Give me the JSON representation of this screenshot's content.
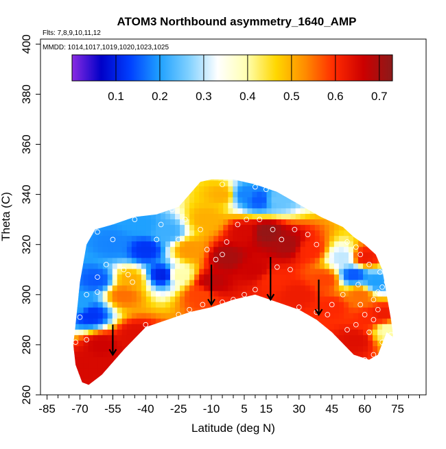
{
  "chart_data": {
    "type": "heatmap",
    "title": "ATOM3 Northbound asymmetry_1640_AMP",
    "subtitle_flights": "Flts: 7,8,9,10,11,12",
    "subtitle_dates": "MMDD: 1014,1017,1019,1020,1023,1025",
    "xlabel": "Latitude (deg N)",
    "ylabel": "Theta (C)",
    "xlim": [
      -88,
      88
    ],
    "ylim": [
      260,
      402
    ],
    "x_ticks": [
      -85,
      -70,
      -55,
      -40,
      -25,
      -10,
      5,
      15,
      30,
      45,
      60,
      75
    ],
    "x_minor_ticks": [
      -80,
      -75,
      -65,
      -60,
      -50,
      -45,
      -35,
      -30,
      -20,
      -15,
      -5,
      0,
      10,
      20,
      25,
      35,
      40,
      50,
      55,
      65,
      70,
      80,
      85
    ],
    "y_ticks": [
      260,
      280,
      300,
      320,
      340,
      360,
      380,
      400
    ],
    "colorbar": {
      "min": 0.0,
      "max": 0.73,
      "ticks": [
        0.1,
        0.2,
        0.3,
        0.4,
        0.5,
        0.6,
        0.7
      ],
      "tick_labels": [
        "0.1",
        "0.2",
        "0.3",
        "0.4",
        "0.5",
        "0.6",
        "0.7"
      ],
      "colors": [
        "#8a2be2",
        "#0000c8",
        "#0040ff",
        "#1ea0ff",
        "#7fd0ff",
        "#ffffff",
        "#ffffb0",
        "#ffd700",
        "#ff8c00",
        "#ff2a00",
        "#cc0000",
        "#8b1a1a"
      ]
    },
    "top_boundary": [
      [
        -72,
        288
      ],
      [
        -70,
        305
      ],
      [
        -67,
        320
      ],
      [
        -63,
        326
      ],
      [
        -55,
        328
      ],
      [
        -45,
        331
      ],
      [
        -35,
        332
      ],
      [
        -25,
        335
      ],
      [
        -20,
        340
      ],
      [
        -15,
        345
      ],
      [
        -10,
        346
      ],
      [
        0,
        346
      ],
      [
        10,
        344
      ],
      [
        20,
        341
      ],
      [
        30,
        336
      ],
      [
        40,
        331
      ],
      [
        50,
        327
      ],
      [
        55,
        323
      ],
      [
        60,
        320
      ],
      [
        65,
        316
      ],
      [
        68,
        310
      ],
      [
        70,
        300
      ],
      [
        72,
        290
      ],
      [
        73,
        283
      ]
    ],
    "bottom_boundary": [
      [
        73,
        283
      ],
      [
        70,
        285
      ],
      [
        66,
        276
      ],
      [
        62,
        274
      ],
      [
        55,
        276
      ],
      [
        45,
        285
      ],
      [
        38,
        290
      ],
      [
        30,
        294
      ],
      [
        20,
        297
      ],
      [
        10,
        300
      ],
      [
        0,
        298
      ],
      [
        -10,
        295
      ],
      [
        -20,
        293
      ],
      [
        -30,
        290
      ],
      [
        -40,
        287
      ],
      [
        -50,
        278
      ],
      [
        -60,
        268
      ],
      [
        -66,
        264
      ],
      [
        -69,
        265
      ],
      [
        -72,
        272
      ],
      [
        -73,
        280
      ]
    ],
    "value_samples": [
      {
        "lat": -68,
        "theta": 272,
        "value": 0.65
      },
      {
        "lat": -60,
        "theta": 280,
        "value": 0.66
      },
      {
        "lat": -55,
        "theta": 272,
        "value": 0.65
      },
      {
        "lat": -45,
        "theta": 284,
        "value": 0.64
      },
      {
        "lat": -65,
        "theta": 292,
        "value": 0.12
      },
      {
        "lat": -70,
        "theta": 296,
        "value": 0.2
      },
      {
        "lat": -62,
        "theta": 306,
        "value": 0.15
      },
      {
        "lat": -50,
        "theta": 300,
        "value": 0.55
      },
      {
        "lat": -47,
        "theta": 306,
        "value": 0.5
      },
      {
        "lat": -55,
        "theta": 320,
        "value": 0.18
      },
      {
        "lat": -40,
        "theta": 318,
        "value": 0.12
      },
      {
        "lat": -32,
        "theta": 308,
        "value": 0.1
      },
      {
        "lat": -42,
        "theta": 328,
        "value": 0.2
      },
      {
        "lat": -30,
        "theta": 325,
        "value": 0.22
      },
      {
        "lat": -25,
        "theta": 308,
        "value": 0.4
      },
      {
        "lat": -15,
        "theta": 300,
        "value": 0.58
      },
      {
        "lat": -20,
        "theta": 318,
        "value": 0.52
      },
      {
        "lat": -12,
        "theta": 330,
        "value": 0.5
      },
      {
        "lat": -5,
        "theta": 340,
        "value": 0.5
      },
      {
        "lat": -10,
        "theta": 305,
        "value": 0.68
      },
      {
        "lat": -3,
        "theta": 315,
        "value": 0.7
      },
      {
        "lat": 5,
        "theta": 325,
        "value": 0.65
      },
      {
        "lat": 5,
        "theta": 340,
        "value": 0.18
      },
      {
        "lat": 12,
        "theta": 338,
        "value": 0.15
      },
      {
        "lat": 20,
        "theta": 338,
        "value": 0.25
      },
      {
        "lat": 15,
        "theta": 325,
        "value": 0.72
      },
      {
        "lat": 10,
        "theta": 310,
        "value": 0.66
      },
      {
        "lat": 18,
        "theta": 306,
        "value": 0.6
      },
      {
        "lat": 25,
        "theta": 320,
        "value": 0.7
      },
      {
        "lat": 35,
        "theta": 318,
        "value": 0.6
      },
      {
        "lat": 30,
        "theta": 300,
        "value": 0.62
      },
      {
        "lat": 42,
        "theta": 306,
        "value": 0.58
      },
      {
        "lat": 45,
        "theta": 295,
        "value": 0.6
      },
      {
        "lat": 50,
        "theta": 315,
        "value": 0.3
      },
      {
        "lat": 55,
        "theta": 308,
        "value": 0.15
      },
      {
        "lat": 58,
        "theta": 300,
        "value": 0.55
      },
      {
        "lat": 60,
        "theta": 315,
        "value": 0.62
      },
      {
        "lat": 65,
        "theta": 305,
        "value": 0.2
      },
      {
        "lat": 62,
        "theta": 290,
        "value": 0.6
      },
      {
        "lat": 68,
        "theta": 292,
        "value": 0.62
      },
      {
        "lat": 56,
        "theta": 282,
        "value": 0.64
      },
      {
        "lat": 70,
        "theta": 286,
        "value": 0.4
      }
    ],
    "observation_points": [
      [
        -72,
        281
      ],
      [
        -67,
        282
      ],
      [
        -70,
        291
      ],
      [
        -67,
        300
      ],
      [
        -62,
        301
      ],
      [
        -62,
        307
      ],
      [
        -58,
        312
      ],
      [
        -50,
        310
      ],
      [
        -48,
        308
      ],
      [
        -46,
        305
      ],
      [
        -40,
        288
      ],
      [
        -35,
        287
      ],
      [
        -25,
        292
      ],
      [
        -20,
        294
      ],
      [
        -14,
        296
      ],
      [
        -5,
        297
      ],
      [
        0,
        298
      ],
      [
        5,
        300
      ],
      [
        10,
        302
      ],
      [
        -62,
        325
      ],
      [
        -55,
        322
      ],
      [
        -45,
        330
      ],
      [
        -33,
        328
      ],
      [
        -28,
        334
      ],
      [
        -22,
        330
      ],
      [
        -15,
        326
      ],
      [
        -35,
        322
      ],
      [
        -25,
        322
      ],
      [
        -12,
        318
      ],
      [
        -5,
        316
      ],
      [
        -8,
        314
      ],
      [
        -3,
        321
      ],
      [
        2,
        328
      ],
      [
        6,
        330
      ],
      [
        -5,
        344
      ],
      [
        10,
        343
      ],
      [
        15,
        342
      ],
      [
        12,
        330
      ],
      [
        18,
        326
      ],
      [
        22,
        322
      ],
      [
        28,
        326
      ],
      [
        34,
        324
      ],
      [
        38,
        320
      ],
      [
        20,
        311
      ],
      [
        26,
        310
      ],
      [
        15,
        297
      ],
      [
        30,
        295
      ],
      [
        38,
        293
      ],
      [
        43,
        292
      ],
      [
        45,
        296
      ],
      [
        50,
        300
      ],
      [
        52,
        286
      ],
      [
        56,
        288
      ],
      [
        60,
        292
      ],
      [
        62,
        285
      ],
      [
        64,
        290
      ],
      [
        66,
        294
      ],
      [
        68,
        303
      ],
      [
        70,
        305
      ],
      [
        67,
        309
      ],
      [
        62,
        312
      ],
      [
        58,
        316
      ],
      [
        56,
        319
      ],
      [
        52,
        321
      ],
      [
        60,
        274
      ],
      [
        64,
        276
      ],
      [
        68,
        281
      ],
      [
        72,
        284
      ],
      [
        57,
        304
      ],
      [
        64,
        298
      ],
      [
        58,
        296
      ],
      [
        66,
        301
      ]
    ],
    "arrows": [
      {
        "lat": -55,
        "theta_top": 288,
        "theta_bottom": 276
      },
      {
        "lat": -10,
        "theta_top": 312,
        "theta_bottom": 296
      },
      {
        "lat": 17,
        "theta_top": 315,
        "theta_bottom": 298
      },
      {
        "lat": 39,
        "theta_top": 306,
        "theta_bottom": 292
      }
    ]
  }
}
